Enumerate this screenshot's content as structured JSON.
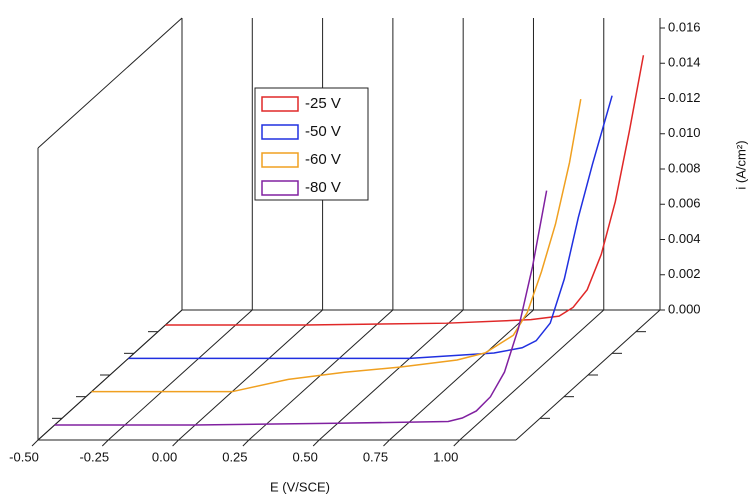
{
  "chart_data": {
    "type": "line",
    "xlabel": "E (V/SCE)",
    "ylabel": "i (A/cm²)",
    "xlim": [
      -0.5,
      1.2
    ],
    "xticks": [
      {
        "value": -0.5,
        "label": "-0.50"
      },
      {
        "value": -0.25,
        "label": "-0.25"
      },
      {
        "value": 0,
        "label": "0.00"
      },
      {
        "value": 0.25,
        "label": "0.25"
      },
      {
        "value": 0.5,
        "label": "0.50"
      },
      {
        "value": 0.75,
        "label": "0.75"
      },
      {
        "value": 1,
        "label": "1.00"
      }
    ],
    "ylim": [
      0,
      0.016
    ],
    "yticks": [
      {
        "value": 0,
        "label": "0.000"
      },
      {
        "value": 0.002,
        "label": "0.002"
      },
      {
        "value": 0.004,
        "label": "0.004"
      },
      {
        "value": 0.006,
        "label": "0.006"
      },
      {
        "value": 0.008,
        "label": "0.008"
      },
      {
        "value": 0.01,
        "label": "0.010"
      },
      {
        "value": 0.012,
        "label": "0.012"
      },
      {
        "value": 0.014,
        "label": "0.014"
      },
      {
        "value": 0.016,
        "label": "0.016"
      }
    ],
    "series": [
      {
        "name": "-25 V",
        "color": "#e02828",
        "x": [
          -0.5,
          0.0,
          0.5,
          0.8,
          0.9,
          0.95,
          1.0,
          1.05,
          1.1,
          1.15,
          1.2
        ],
        "values": [
          0,
          0,
          0.0001,
          0.0003,
          0.0005,
          0.001,
          0.002,
          0.004,
          0.007,
          0.011,
          0.0153
        ]
      },
      {
        "name": "-50 V",
        "color": "#2030e0",
        "x": [
          -0.5,
          0.0,
          0.5,
          0.8,
          0.9,
          0.95,
          1.0,
          1.05,
          1.1,
          1.15,
          1.22
        ],
        "values": [
          0,
          0,
          0,
          0.0003,
          0.0006,
          0.001,
          0.002,
          0.0045,
          0.008,
          0.011,
          0.0149
        ]
      },
      {
        "name": "-60 V",
        "color": "#f0a020",
        "x": [
          -0.5,
          0.0,
          0.2,
          0.4,
          0.6,
          0.8,
          0.9,
          1.0,
          1.05,
          1.1,
          1.15,
          1.2,
          1.24
        ],
        "values": [
          0,
          0,
          0.0007,
          0.0011,
          0.0014,
          0.0018,
          0.0022,
          0.0032,
          0.0045,
          0.0068,
          0.0095,
          0.013,
          0.0166
        ]
      },
      {
        "name": "-80 V",
        "color": "#8020a0",
        "x": [
          -0.5,
          0.0,
          0.5,
          0.9,
          0.95,
          1.0,
          1.05,
          1.1,
          1.15,
          1.2,
          1.25
        ],
        "values": [
          0,
          0,
          0.0001,
          0.0002,
          0.0004,
          0.0008,
          0.0016,
          0.003,
          0.0055,
          0.009,
          0.0133
        ]
      }
    ]
  }
}
